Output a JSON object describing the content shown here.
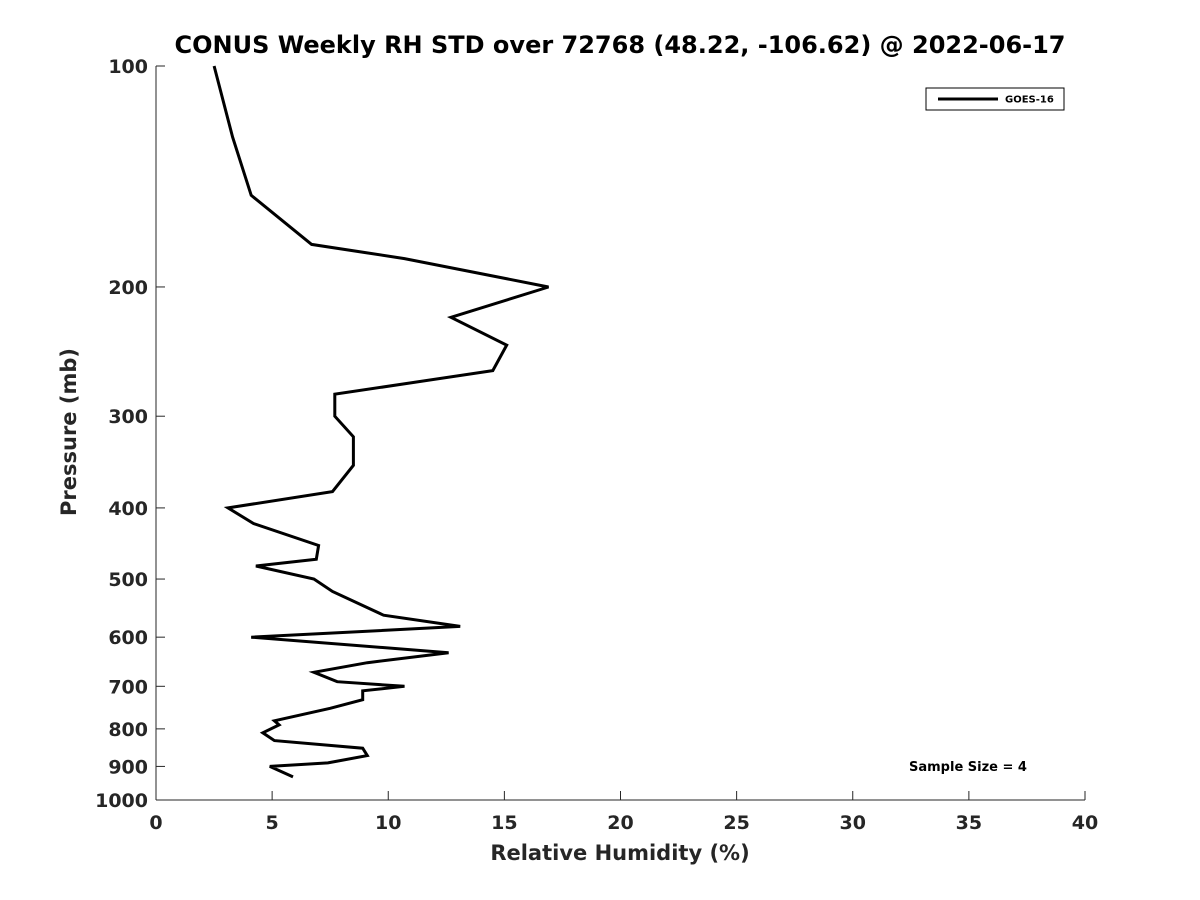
{
  "chart_data": {
    "type": "line",
    "title": "CONUS Weekly RH STD over 72768 (48.22, -106.62) @ 2022-06-17",
    "xlabel": "Relative Humidity (%)",
    "ylabel": "Pressure (mb)",
    "xlim": [
      0,
      40
    ],
    "ylim": [
      100,
      1000
    ],
    "y_scale": "log",
    "y_reversed": true,
    "x_ticks": [
      "0",
      "5",
      "10",
      "15",
      "20",
      "25",
      "30",
      "35",
      "40"
    ],
    "y_ticks": [
      "100",
      "200",
      "300",
      "400",
      "500",
      "600",
      "700",
      "800",
      "900",
      "1000"
    ],
    "grid": false,
    "legend_position": "top-right",
    "annotation": "Sample Size = 4",
    "series": [
      {
        "name": "GOES-16",
        "color": "#000000",
        "points": [
          [
            2.5,
            100
          ],
          [
            3.3,
            125
          ],
          [
            4.1,
            150
          ],
          [
            6.7,
            175
          ],
          [
            10.7,
            183
          ],
          [
            16.9,
            200
          ],
          [
            12.7,
            220
          ],
          [
            15.1,
            240
          ],
          [
            14.5,
            260
          ],
          [
            7.7,
            280
          ],
          [
            7.7,
            300
          ],
          [
            8.5,
            320
          ],
          [
            8.5,
            350
          ],
          [
            7.6,
            380
          ],
          [
            3.1,
            400
          ],
          [
            4.2,
            420
          ],
          [
            7.0,
            450
          ],
          [
            6.9,
            470
          ],
          [
            4.3,
            480
          ],
          [
            6.8,
            500
          ],
          [
            7.6,
            520
          ],
          [
            9.8,
            560
          ],
          [
            13.1,
            580
          ],
          [
            4.1,
            600
          ],
          [
            12.6,
            630
          ],
          [
            9.1,
            650
          ],
          [
            6.8,
            670
          ],
          [
            7.8,
            690
          ],
          [
            10.7,
            700
          ],
          [
            8.9,
            710
          ],
          [
            8.9,
            730
          ],
          [
            7.5,
            750
          ],
          [
            5.1,
            780
          ],
          [
            5.3,
            790
          ],
          [
            4.6,
            810
          ],
          [
            5.1,
            830
          ],
          [
            8.9,
            850
          ],
          [
            9.1,
            870
          ],
          [
            7.4,
            890
          ],
          [
            4.9,
            900
          ],
          [
            5.9,
            930
          ]
        ]
      }
    ]
  }
}
